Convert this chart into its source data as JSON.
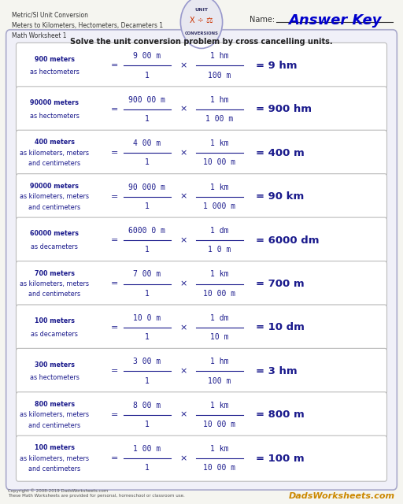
{
  "title_lines": [
    "Metric/SI Unit Conversion",
    "Meters to Kilometers, Hectometers, Decameters 1",
    "Math Worksheet 1"
  ],
  "name_label": "Name:",
  "answer_key": "Answer Key",
  "instruction": "Solve the unit conversion problem by cross cancelling units.",
  "bg_color": "#f5f5f0",
  "box_color": "#ffffff",
  "border_color": "#cccccc",
  "text_color": "#1a1a8c",
  "header_text_color": "#333333",
  "problems": [
    {
      "line1": "900 meters",
      "line2": "as hectometers",
      "line3": "",
      "num1": "9 00 m",
      "den1": "1",
      "num2": "1 hm",
      "den2": "100 m",
      "result": "= 9 hm"
    },
    {
      "line1": "90000 meters",
      "line2": "as hectometers",
      "line3": "",
      "num1": "900 00 m",
      "den1": "1",
      "num2": "1 hm",
      "den2": "1 00 m",
      "result": "= 900 hm"
    },
    {
      "line1": "400 meters",
      "line2": "as kilometers, meters",
      "line3": "and centimeters",
      "num1": "4 00 m",
      "den1": "1",
      "num2": "1 km",
      "den2": "10 00 m",
      "result": "= 400 m"
    },
    {
      "line1": "90000 meters",
      "line2": "as kilometers, meters",
      "line3": "and centimeters",
      "num1": "90 000 m",
      "den1": "1",
      "num2": "1 km",
      "den2": "1 000 m",
      "result": "= 90 km"
    },
    {
      "line1": "60000 meters",
      "line2": "as decameters",
      "line3": "",
      "num1": "6000 0 m",
      "den1": "1",
      "num2": "1 dm",
      "den2": "1 0 m",
      "result": "= 6000 dm"
    },
    {
      "line1": "700 meters",
      "line2": "as kilometers, meters",
      "line3": "and centimeters",
      "num1": "7 00 m",
      "den1": "1",
      "num2": "1 km",
      "den2": "10 00 m",
      "result": "= 700 m"
    },
    {
      "line1": "100 meters",
      "line2": "as decameters",
      "line3": "",
      "num1": "10 0 m",
      "den1": "1",
      "num2": "1 dm",
      "den2": "10 m",
      "result": "= 10 dm"
    },
    {
      "line1": "300 meters",
      "line2": "as hectometers",
      "line3": "",
      "num1": "3 00 m",
      "den1": "1",
      "num2": "1 hm",
      "den2": "100 m",
      "result": "= 3 hm"
    },
    {
      "line1": "800 meters",
      "line2": "as kilometers, meters",
      "line3": "and centimeters",
      "num1": "8 00 m",
      "den1": "1",
      "num2": "1 km",
      "den2": "10 00 m",
      "result": "= 800 m"
    },
    {
      "line1": "100 meters",
      "line2": "as kilometers, meters",
      "line3": "and centimeters",
      "num1": "1 00 m",
      "den1": "1",
      "num2": "1 km",
      "den2": "10 00 m",
      "result": "= 100 m"
    }
  ],
  "footer_left": "Copyright © 2008-2019 DadsWorksheets.com\nThese Math Worksheets are provided for personal, homeschool or classroom use.",
  "footer_right": "DadsWorksheets.com"
}
